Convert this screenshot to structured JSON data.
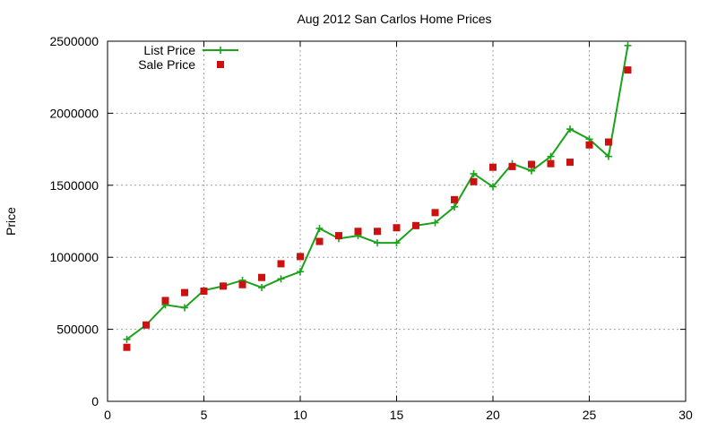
{
  "chart_data": {
    "type": "line",
    "title": "Aug 2012 San Carlos Home Prices",
    "xlabel": "",
    "ylabel": "Price",
    "xlim": [
      0,
      30
    ],
    "ylim": [
      0,
      2500000
    ],
    "xticks": [
      0,
      5,
      10,
      15,
      20,
      25,
      30
    ],
    "yticks": [
      0,
      500000,
      1000000,
      1500000,
      2000000,
      2500000
    ],
    "xtick_labels": [
      "0",
      "5",
      "10",
      "15",
      "20",
      "25",
      "30"
    ],
    "ytick_labels": [
      "0",
      "500000",
      "1000000",
      "1500000",
      "2000000",
      "2500000"
    ],
    "grid": true,
    "legend_position": "top-left",
    "series": [
      {
        "name": "List Price",
        "style": "line+cross",
        "color": "#1aa31a",
        "x": [
          1,
          2,
          3,
          4,
          5,
          6,
          7,
          8,
          9,
          10,
          11,
          12,
          13,
          14,
          15,
          16,
          17,
          18,
          19,
          20,
          21,
          22,
          23,
          24,
          25,
          26,
          27
        ],
        "values": [
          430000,
          530000,
          670000,
          650000,
          770000,
          800000,
          840000,
          790000,
          850000,
          900000,
          1200000,
          1130000,
          1150000,
          1100000,
          1100000,
          1220000,
          1240000,
          1350000,
          1580000,
          1490000,
          1650000,
          1600000,
          1700000,
          1890000,
          1820000,
          1700000,
          2470000
        ]
      },
      {
        "name": "Sale Price",
        "style": "square",
        "color": "#cc1111",
        "x": [
          1,
          2,
          3,
          4,
          5,
          6,
          7,
          8,
          9,
          10,
          11,
          12,
          13,
          14,
          15,
          16,
          17,
          18,
          19,
          20,
          21,
          22,
          23,
          24,
          25,
          26,
          27
        ],
        "values": [
          375000,
          530000,
          700000,
          755000,
          765000,
          800000,
          810000,
          860000,
          955000,
          1005000,
          1110000,
          1150000,
          1180000,
          1180000,
          1205000,
          1220000,
          1310000,
          1400000,
          1525000,
          1625000,
          1630000,
          1645000,
          1650000,
          1660000,
          1780000,
          1800000,
          2300000
        ]
      }
    ]
  }
}
